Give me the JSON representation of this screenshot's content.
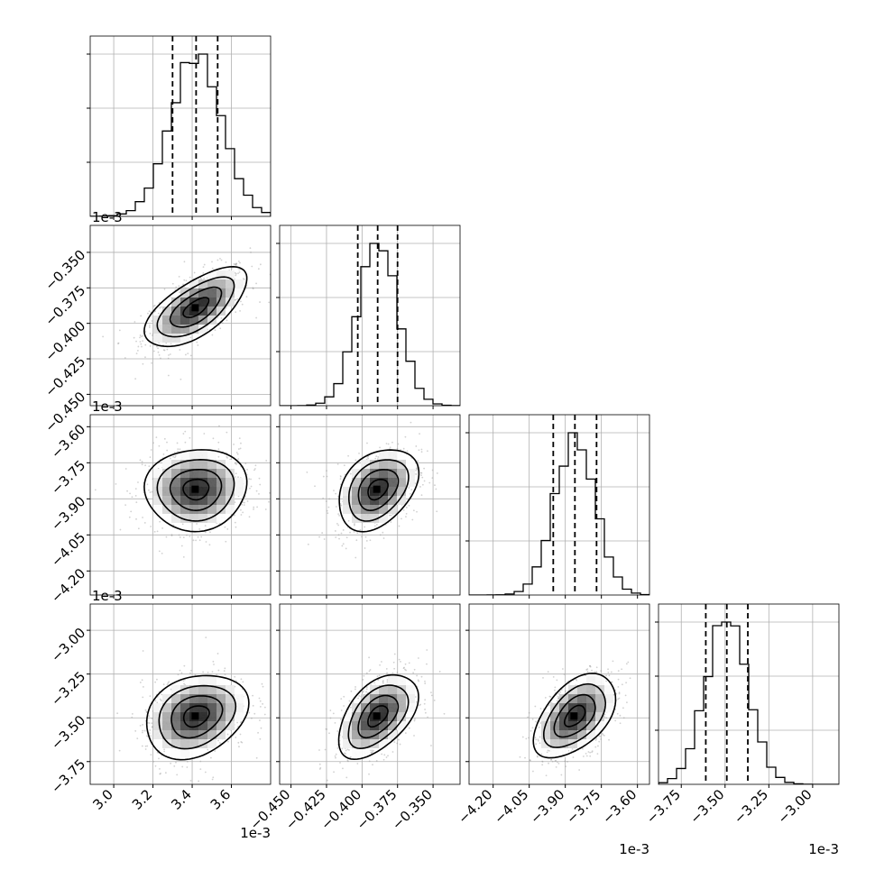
{
  "chart_data": {
    "type": "corner",
    "title": "",
    "grid": true,
    "multiplier_label": "1e-3",
    "quantile_lines": "dashed",
    "parameters": [
      {
        "name": "",
        "range": [
          2.88,
          3.8
        ],
        "ticks": [
          3.0,
          3.2,
          3.4,
          3.6
        ],
        "tick_labels": [
          "3.0",
          "3.2",
          "3.4",
          "3.6"
        ],
        "mean": 3.42,
        "sd": 0.13,
        "quantiles": [
          3.3,
          3.42,
          3.53
        ]
      },
      {
        "name": "",
        "range": [
          -0.458,
          -0.331
        ],
        "ticks": [
          -0.45,
          -0.425,
          -0.4,
          -0.375,
          -0.35
        ],
        "tick_labels": [
          "−0.450",
          "−0.425",
          "−0.400",
          "−0.375",
          "−0.350"
        ],
        "mean": -0.389,
        "sd": 0.014,
        "quantiles": [
          -0.403,
          -0.389,
          -0.375
        ]
      },
      {
        "name": "",
        "range": [
          -4.3,
          -3.55
        ],
        "ticks": [
          -4.2,
          -4.05,
          -3.9,
          -3.75,
          -3.6
        ],
        "tick_labels": [
          "−4.20",
          "−4.05",
          "−3.90",
          "−3.75",
          "−3.60"
        ],
        "mean": -3.86,
        "sd": 0.085,
        "quantiles": [
          -3.95,
          -3.86,
          -3.77
        ]
      },
      {
        "name": "",
        "range": [
          -3.88,
          -2.85
        ],
        "ticks": [
          -3.75,
          -3.5,
          -3.25,
          -3.0
        ],
        "tick_labels": [
          "−3.75",
          "−3.50",
          "−3.25",
          "−3.00"
        ],
        "mean": -3.49,
        "sd": 0.12,
        "quantiles": [
          -3.61,
          -3.49,
          -3.37
        ]
      }
    ],
    "correlations": {
      "1-0": 0.65,
      "2-0": 0.05,
      "2-1": 0.35,
      "3-0": 0.25,
      "3-1": 0.5,
      "3-2": 0.5
    }
  }
}
